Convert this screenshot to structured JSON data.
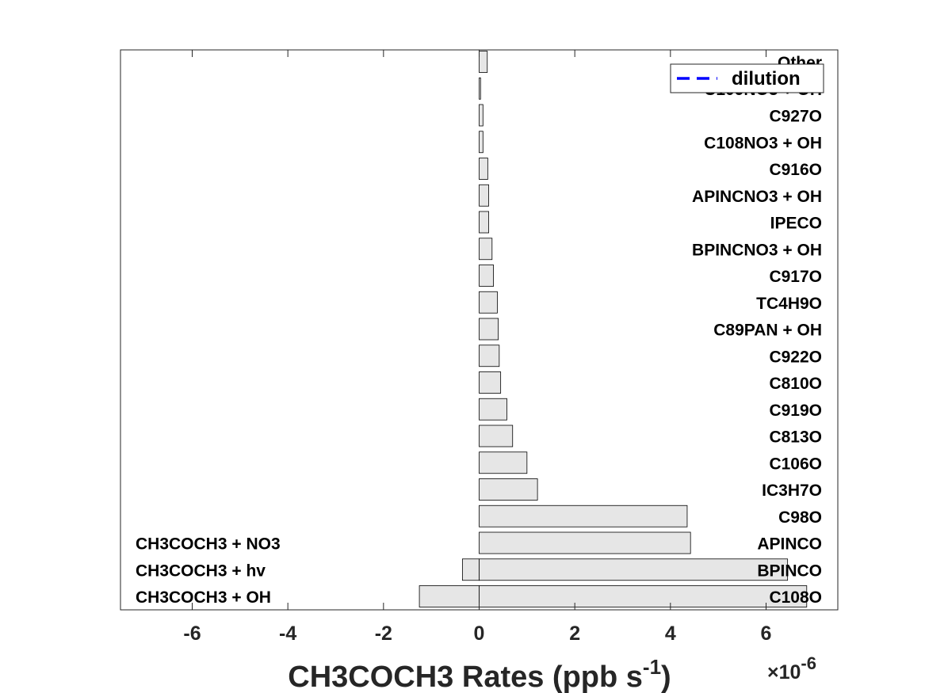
{
  "chart_data": {
    "type": "bar",
    "orientation": "horizontal",
    "xlabel_main": "CH3COCH3 Rates (ppb s",
    "xlabel_exp": "-1",
    "xlabel_close": ")",
    "scale_factor_prefix": "×10",
    "scale_factor_exp": "-6",
    "xlim": [
      -7.5,
      7.5
    ],
    "xticks": [
      "-6",
      "-4",
      "-2",
      "0",
      "2",
      "4",
      "6"
    ],
    "xtick_values": [
      -6,
      -4,
      -2,
      0,
      2,
      4,
      6
    ],
    "production_categories": [
      "C108O",
      "BPINCO",
      "APINCO",
      "C98O",
      "IC3H7O",
      "C106O",
      "C813O",
      "C919O",
      "C810O",
      "C922O",
      "C89PAN + OH",
      "TC4H9O",
      "C917O",
      "BPINCNO3 + OH",
      "IPECO",
      "APINCNO3 + OH",
      "C916O",
      "C108NO3 + OH",
      "C927O",
      "C109NO3 + OH",
      "Other"
    ],
    "production_values": [
      6.85,
      6.45,
      4.42,
      4.35,
      1.22,
      1.0,
      0.7,
      0.58,
      0.45,
      0.42,
      0.4,
      0.38,
      0.3,
      0.27,
      0.2,
      0.2,
      0.18,
      0.08,
      0.08,
      0.03,
      0.17
    ],
    "loss_categories": [
      "CH3COCH3 + OH",
      "CH3COCH3 + hv",
      "CH3COCH3 + NO3"
    ],
    "loss_values": [
      -1.25,
      -0.35,
      0.0
    ],
    "legend": [
      {
        "label": "dilution",
        "color": "#0000ff",
        "style": "dashed"
      }
    ],
    "legend_position": "top-right",
    "bar_color": "#e6e6e6",
    "bar_edge_color": "#000000"
  }
}
